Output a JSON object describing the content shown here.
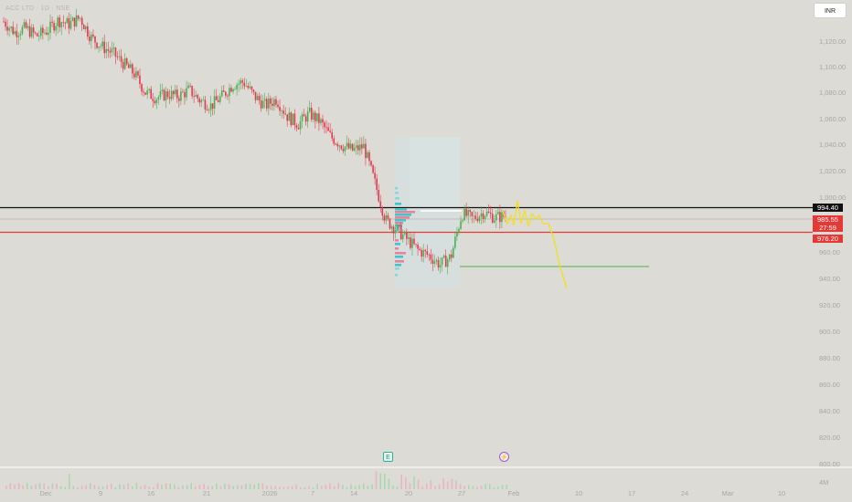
{
  "header": {
    "symbol_title": "ACC LTD · 1D · NSE",
    "currency_button": "INR"
  },
  "price_axis": {
    "ticks": [
      "1,120.00",
      "1,100.00",
      "1,080.00",
      "1,060.00",
      "1,040.00",
      "1,020.00",
      "1,000.00",
      "960.00",
      "940.00",
      "920.00",
      "900.00",
      "880.00",
      "860.00",
      "840.00",
      "820.00",
      "800.00"
    ],
    "volume_label": "4M"
  },
  "price_tags": {
    "black": "994.40",
    "red_top": "985.55",
    "countdown": "27:59",
    "red_bottom": "976.20"
  },
  "time_axis": {
    "ticks": [
      "Dec",
      "9",
      "16",
      "21",
      "2026",
      "7",
      "14",
      "20",
      "27",
      "Feb",
      "10",
      "17",
      "24",
      "Mar",
      "10"
    ]
  },
  "events": {
    "earnings": "E",
    "dividend": "⚡"
  },
  "chart_data": {
    "type": "candlestick",
    "currency": "INR",
    "ylim": [
      800,
      1130
    ],
    "horizontal_lines": [
      {
        "name": "black-level",
        "value": 994.4,
        "color": "#111111"
      },
      {
        "name": "red-level",
        "value": 976.2,
        "color": "#e53935"
      },
      {
        "name": "grey-level",
        "value": 985.55,
        "color": "#c9a9a9"
      },
      {
        "name": "green-level",
        "value": 958,
        "color": "#4caf50"
      }
    ],
    "close_path": [
      {
        "x": 0,
        "y": 1136
      },
      {
        "x": 1,
        "y": 1128
      },
      {
        "x": 2,
        "y": 1131
      },
      {
        "x": 3,
        "y": 1125
      },
      {
        "x": 4,
        "y": 1129
      },
      {
        "x": 5,
        "y": 1137
      },
      {
        "x": 6,
        "y": 1134
      },
      {
        "x": 7,
        "y": 1139
      },
      {
        "x": 8,
        "y": 1124
      },
      {
        "x": 9,
        "y": 1117
      },
      {
        "x": 10,
        "y": 1112
      },
      {
        "x": 11,
        "y": 1104
      },
      {
        "x": 12,
        "y": 1096
      },
      {
        "x": 13,
        "y": 1082
      },
      {
        "x": 14,
        "y": 1078
      },
      {
        "x": 15,
        "y": 1081
      },
      {
        "x": 16,
        "y": 1079
      },
      {
        "x": 17,
        "y": 1084
      },
      {
        "x": 18,
        "y": 1076
      },
      {
        "x": 19,
        "y": 1072
      },
      {
        "x": 20,
        "y": 1079
      },
      {
        "x": 21,
        "y": 1088
      },
      {
        "x": 22,
        "y": 1090
      },
      {
        "x": 23,
        "y": 1079
      },
      {
        "x": 24,
        "y": 1072
      },
      {
        "x": 25,
        "y": 1077
      },
      {
        "x": 26,
        "y": 1064
      },
      {
        "x": 27,
        "y": 1058
      },
      {
        "x": 28,
        "y": 1066
      },
      {
        "x": 29,
        "y": 1060
      },
      {
        "x": 30,
        "y": 1048
      },
      {
        "x": 31,
        "y": 1042
      },
      {
        "x": 32,
        "y": 1038
      },
      {
        "x": 33,
        "y": 1041
      },
      {
        "x": 34,
        "y": 1014
      },
      {
        "x": 35,
        "y": 985
      },
      {
        "x": 36,
        "y": 978
      },
      {
        "x": 37,
        "y": 970
      },
      {
        "x": 38,
        "y": 962
      },
      {
        "x": 39,
        "y": 958
      },
      {
        "x": 40,
        "y": 951
      },
      {
        "x": 41,
        "y": 957
      },
      {
        "x": 42,
        "y": 990
      },
      {
        "x": 43,
        "y": 986
      },
      {
        "x": 44,
        "y": 991
      },
      {
        "x": 45,
        "y": 987
      },
      {
        "x": 46,
        "y": 988
      }
    ],
    "projection": [
      990,
      998,
      984,
      994,
      986,
      990,
      972,
      945
    ]
  }
}
